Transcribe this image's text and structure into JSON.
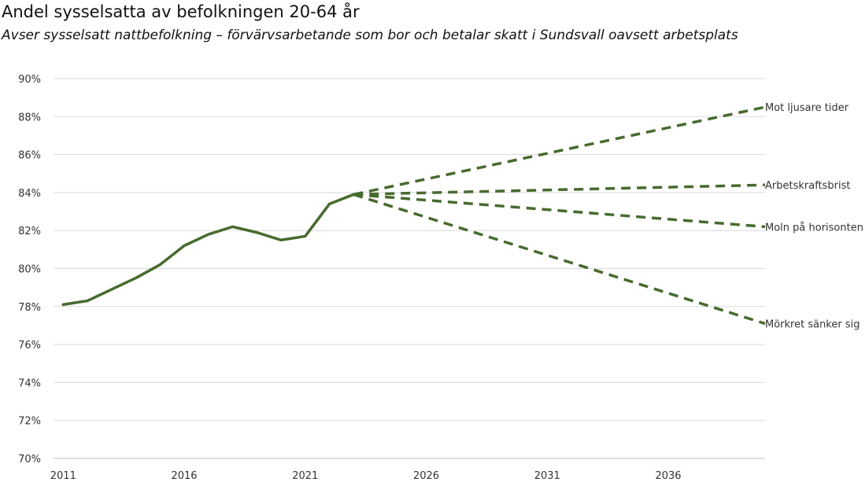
{
  "chart_data": {
    "type": "line",
    "title": "Andel sysselsatta av befolkningen 20-64 år",
    "subtitle": "Avser sysselsatt nattbefolkning – förvärvsarbetande som bor och betalar skatt i Sundsvall oavsett arbetsplats",
    "xlabel": "",
    "ylabel": "",
    "xlim": [
      2010.6,
      2040
    ],
    "ylim": [
      70,
      90
    ],
    "x_ticks": [
      2011,
      2016,
      2021,
      2026,
      2031,
      2036
    ],
    "y_ticks": [
      70,
      72,
      74,
      76,
      78,
      80,
      82,
      84,
      86,
      88,
      90
    ],
    "y_tick_suffix": "%",
    "grid": true,
    "color": "#476b2e",
    "historical": {
      "x": [
        2011,
        2012,
        2013,
        2014,
        2015,
        2016,
        2017,
        2018,
        2019,
        2020,
        2021,
        2022,
        2023
      ],
      "y": [
        78.1,
        78.3,
        78.9,
        79.5,
        80.2,
        81.2,
        81.8,
        82.2,
        81.9,
        81.5,
        81.7,
        83.4,
        83.9
      ]
    },
    "series": [
      {
        "name": "Mot ljusare tider",
        "style": "dashed",
        "x": [
          2023,
          2040
        ],
        "y": [
          83.9,
          88.5
        ]
      },
      {
        "name": "Arbetskraftsbrist",
        "style": "dashed",
        "x": [
          2023,
          2040
        ],
        "y": [
          83.9,
          84.4
        ]
      },
      {
        "name": "Moln på horisonten",
        "style": "dashed",
        "x": [
          2023,
          2040
        ],
        "y": [
          83.9,
          82.2
        ]
      },
      {
        "name": "Mörkret sänker sig",
        "style": "dashed",
        "x": [
          2023,
          2040
        ],
        "y": [
          83.9,
          77.1
        ]
      }
    ]
  }
}
